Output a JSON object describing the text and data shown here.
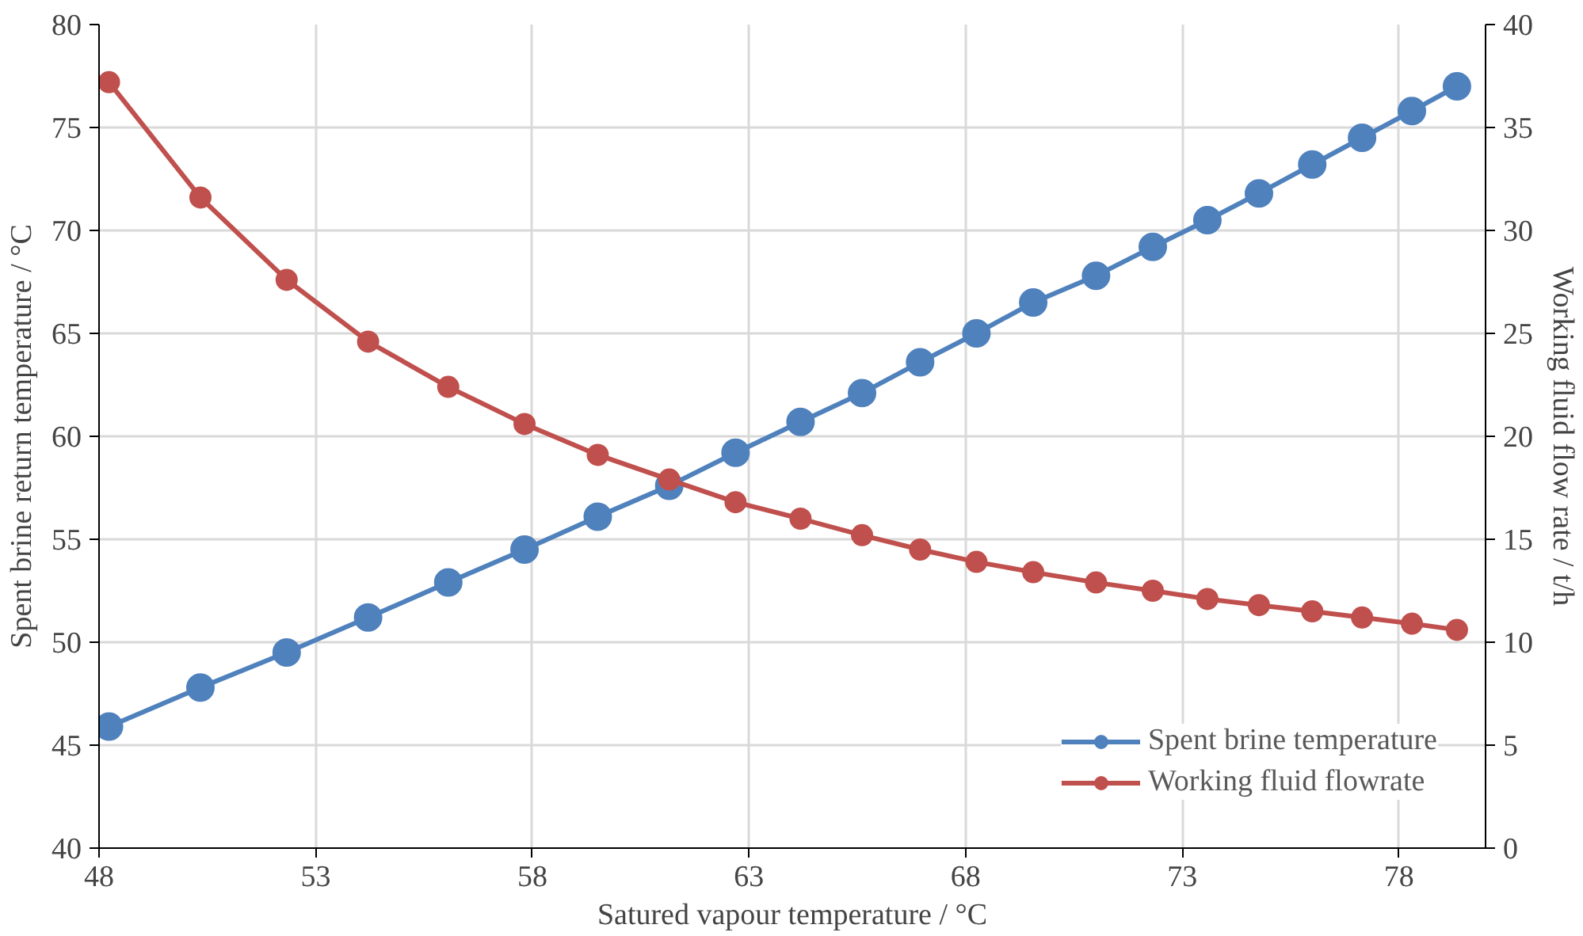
{
  "chart_data": {
    "type": "line",
    "xlabel": "Satured vapour temperature / °C",
    "ylabel": "Spent brine return temperature / °C",
    "y2label": "Working fluid flow rate / t/h",
    "x": [
      48.23,
      50.34,
      52.33,
      54.21,
      56.06,
      57.82,
      59.51,
      61.16,
      62.69,
      64.19,
      65.61,
      66.95,
      68.25,
      69.56,
      71.01,
      72.32,
      73.58,
      74.77,
      76.0,
      77.15,
      78.3,
      79.34
    ],
    "series": [
      {
        "name": "Spent brine temperature",
        "color": "#4f81bd",
        "values": [
          45.9,
          47.8,
          49.5,
          51.2,
          52.9,
          54.5,
          56.1,
          57.6,
          59.2,
          60.7,
          62.1,
          63.6,
          65.0,
          66.5,
          67.8,
          69.2,
          70.5,
          71.8,
          73.2,
          74.5,
          75.8,
          77.0
        ]
      },
      {
        "name": "Working fluid flowrate",
        "color": "#c0504d",
        "axis": "y2",
        "values": [
          37.2,
          31.6,
          27.6,
          24.6,
          22.4,
          20.6,
          19.1,
          17.9,
          16.8,
          16.0,
          15.2,
          14.5,
          13.9,
          13.4,
          12.9,
          12.5,
          12.1,
          11.8,
          11.5,
          11.2,
          10.9,
          10.6
        ]
      }
    ],
    "xlim": [
      48,
      80
    ],
    "xticks": [
      48,
      53,
      58,
      63,
      68,
      73,
      78
    ],
    "ylim": [
      40,
      80
    ],
    "yticks": [
      40,
      45,
      50,
      55,
      60,
      65,
      70,
      75,
      80
    ],
    "y2lim": [
      0,
      40
    ],
    "y2ticks": [
      0,
      5,
      10,
      15,
      20,
      25,
      30,
      35,
      40
    ],
    "grid": true,
    "legend": "bottom right",
    "marker": "circle",
    "line_style": "solid"
  }
}
